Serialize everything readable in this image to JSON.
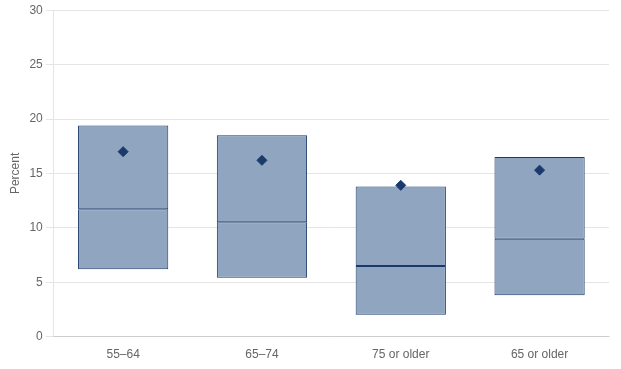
{
  "chart_data": {
    "type": "box",
    "ylabel": "Percent",
    "categories": [
      "55–64",
      "65–74",
      "75 or older",
      "65 or older"
    ],
    "series": [
      {
        "type": "box",
        "color": "#8FA5C0",
        "box_low": [
          6.2,
          5.4,
          2.0,
          3.8
        ],
        "median": [
          11.7,
          10.5,
          6.5,
          9.0
        ],
        "box_high": [
          19.4,
          18.5,
          13.8,
          16.5
        ]
      },
      {
        "type": "scatter",
        "marker": "diamond",
        "color": "#1B3A6B",
        "values": [
          17.0,
          16.2,
          13.9,
          15.3
        ]
      }
    ],
    "ylim": [
      0,
      30
    ],
    "yticks": [
      0,
      5,
      10,
      15,
      20,
      25,
      30
    ],
    "grid": true
  }
}
